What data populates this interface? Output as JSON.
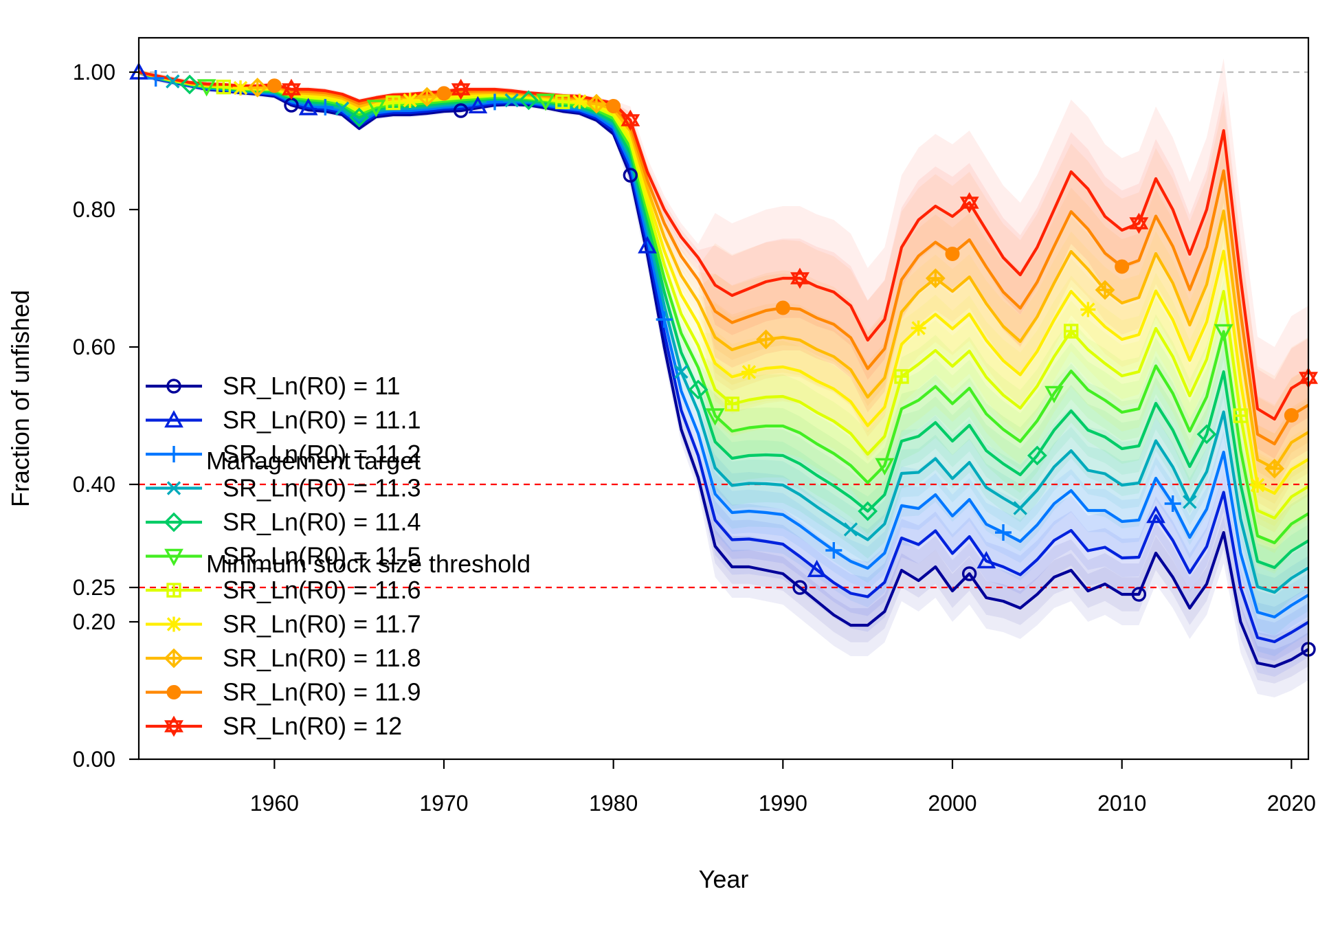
{
  "chart_data": {
    "type": "line",
    "title": "",
    "xlabel": "Year",
    "ylabel": "Fraction of unfished",
    "xlim": [
      1952,
      2021
    ],
    "ylim": [
      0,
      1.05
    ],
    "x_ticks": [
      1960,
      1970,
      1980,
      1990,
      2000,
      2010,
      2020
    ],
    "y_ticks": [
      0.0,
      0.2,
      0.25,
      0.4,
      0.6,
      0.8,
      1.0
    ],
    "y_tick_labels": [
      "0.00",
      "0.20",
      "0.25",
      "0.40",
      "0.60",
      "0.80",
      "1.00"
    ],
    "grid": false,
    "legend_position": "bottom-left",
    "reference_lines": [
      {
        "y": 1.0,
        "label": "",
        "color": "#bbbbbb"
      },
      {
        "y": 0.4,
        "label": "Management target",
        "color": "#ff0000"
      },
      {
        "y": 0.25,
        "label": "Minimum stock size threshold",
        "color": "#ff0000"
      }
    ],
    "years": [
      1952,
      1953,
      1954,
      1955,
      1956,
      1957,
      1958,
      1959,
      1960,
      1961,
      1962,
      1963,
      1964,
      1965,
      1966,
      1967,
      1968,
      1969,
      1970,
      1971,
      1972,
      1973,
      1974,
      1975,
      1976,
      1977,
      1978,
      1979,
      1980,
      1981,
      1982,
      1983,
      1984,
      1985,
      1986,
      1987,
      1988,
      1989,
      1990,
      1991,
      1992,
      1993,
      1994,
      1995,
      1996,
      1997,
      1998,
      1999,
      2000,
      2001,
      2002,
      2003,
      2004,
      2005,
      2006,
      2007,
      2008,
      2009,
      2010,
      2011,
      2012,
      2013,
      2014,
      2015,
      2016,
      2017,
      2018,
      2019,
      2020,
      2021
    ],
    "low_curve": [
      1.0,
      0.99,
      0.985,
      0.98,
      0.975,
      0.973,
      0.97,
      0.968,
      0.965,
      0.952,
      0.945,
      0.943,
      0.938,
      0.918,
      0.935,
      0.938,
      0.938,
      0.94,
      0.943,
      0.944,
      0.948,
      0.952,
      0.953,
      0.952,
      0.948,
      0.943,
      0.94,
      0.93,
      0.91,
      0.85,
      0.735,
      0.6,
      0.48,
      0.41,
      0.31,
      0.28,
      0.28,
      0.275,
      0.27,
      0.25,
      0.23,
      0.21,
      0.195,
      0.195,
      0.215,
      0.275,
      0.26,
      0.28,
      0.245,
      0.27,
      0.235,
      0.23,
      0.22,
      0.24,
      0.265,
      0.275,
      0.245,
      0.255,
      0.24,
      0.24,
      0.3,
      0.265,
      0.22,
      0.255,
      0.33,
      0.2,
      0.14,
      0.135,
      0.145,
      0.16
    ],
    "high_curve": [
      1.0,
      0.995,
      0.99,
      0.985,
      0.983,
      0.982,
      0.98,
      0.98,
      0.982,
      0.975,
      0.975,
      0.973,
      0.968,
      0.958,
      0.963,
      0.967,
      0.968,
      0.97,
      0.972,
      0.975,
      0.975,
      0.975,
      0.973,
      0.97,
      0.968,
      0.966,
      0.965,
      0.96,
      0.955,
      0.93,
      0.855,
      0.8,
      0.76,
      0.73,
      0.69,
      0.675,
      0.685,
      0.695,
      0.7,
      0.7,
      0.688,
      0.68,
      0.66,
      0.61,
      0.64,
      0.745,
      0.785,
      0.805,
      0.79,
      0.81,
      0.77,
      0.73,
      0.705,
      0.745,
      0.8,
      0.855,
      0.83,
      0.79,
      0.77,
      0.78,
      0.845,
      0.8,
      0.735,
      0.8,
      0.915,
      0.7,
      0.51,
      0.495,
      0.54,
      0.555
    ],
    "series": [
      {
        "name": "SR_Ln(R0) =  11",
        "color": "#000099",
        "marker": "circle",
        "marker_years": [
          1961,
          1971,
          1981,
          1991,
          2001,
          2011,
          2021
        ]
      },
      {
        "name": "SR_Ln(R0) =  11.1",
        "color": "#0022dd",
        "marker": "triangle-up",
        "marker_years": [
          1952,
          1962,
          1972,
          1982,
          1992,
          2002,
          2012
        ]
      },
      {
        "name": "SR_Ln(R0) =  11.2",
        "color": "#0077ff",
        "marker": "plus",
        "marker_years": [
          1953,
          1963,
          1973,
          1983,
          1993,
          2003,
          2013
        ]
      },
      {
        "name": "SR_Ln(R0) =  11.3",
        "color": "#00aabb",
        "marker": "x",
        "marker_years": [
          1954,
          1964,
          1974,
          1984,
          1994,
          2004,
          2014
        ]
      },
      {
        "name": "SR_Ln(R0) =  11.4",
        "color": "#00cc66",
        "marker": "diamond",
        "marker_years": [
          1955,
          1965,
          1975,
          1985,
          1995,
          2005,
          2015
        ]
      },
      {
        "name": "SR_Ln(R0) =  11.5",
        "color": "#44ee22",
        "marker": "triangle-down",
        "marker_years": [
          1956,
          1966,
          1976,
          1986,
          1996,
          2006,
          2016
        ]
      },
      {
        "name": "SR_Ln(R0) =  11.6",
        "color": "#ddff00",
        "marker": "square-plus",
        "marker_years": [
          1957,
          1967,
          1977,
          1987,
          1997,
          2007,
          2017
        ]
      },
      {
        "name": "SR_Ln(R0) =  11.7",
        "color": "#ffee00",
        "marker": "asterisk",
        "marker_years": [
          1958,
          1968,
          1978,
          1988,
          1998,
          2008,
          2018
        ]
      },
      {
        "name": "SR_Ln(R0) =  11.8",
        "color": "#ffbb00",
        "marker": "diamond-plus",
        "marker_years": [
          1959,
          1969,
          1979,
          1989,
          1999,
          2009,
          2019
        ]
      },
      {
        "name": "SR_Ln(R0) =  11.9",
        "color": "#ff8800",
        "marker": "circle-filled",
        "marker_years": [
          1960,
          1970,
          1980,
          1990,
          2000,
          2010,
          2020
        ]
      },
      {
        "name": "SR_Ln(R0) =  12",
        "color": "#ff2200",
        "marker": "star-of-david",
        "marker_years": [
          1961,
          1971,
          1981,
          1991,
          2001,
          2011,
          2021
        ]
      }
    ]
  }
}
